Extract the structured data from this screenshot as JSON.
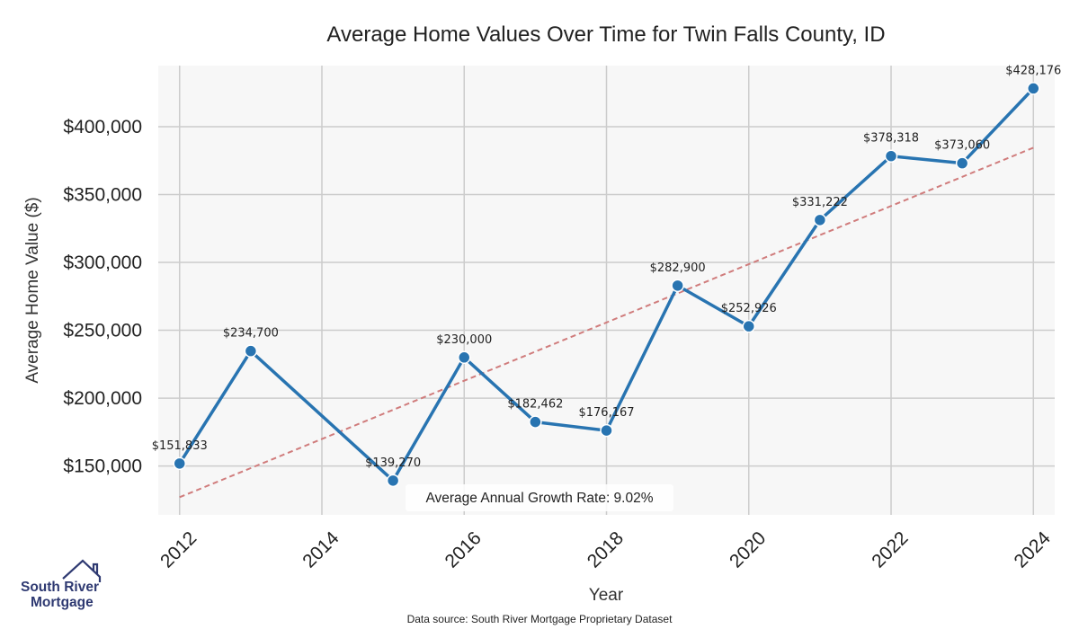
{
  "chart_data": {
    "type": "line",
    "title": "Average Home Values Over Time for Twin Falls County, ID",
    "xlabel": "Year",
    "ylabel": "Average Home Value ($)",
    "xlim": [
      2011.7,
      2024.3
    ],
    "ylim": [
      114000,
      445000
    ],
    "x_ticks": [
      2012,
      2014,
      2016,
      2018,
      2020,
      2022,
      2024
    ],
    "y_ticks": [
      150000,
      200000,
      250000,
      300000,
      350000,
      400000
    ],
    "y_tick_labels": [
      "$150,000",
      "$200,000",
      "$250,000",
      "$300,000",
      "$350,000",
      "$400,000"
    ],
    "grid": true,
    "series": [
      {
        "color": "#2874b1",
        "x": [
          2012,
          2013,
          2015,
          2016,
          2017,
          2018,
          2019,
          2020,
          2021,
          2022,
          2023,
          2024
        ],
        "values": [
          151833,
          234700,
          139270,
          230000,
          182462,
          176167,
          282900,
          252926,
          331222,
          378318,
          373060,
          428176
        ],
        "labels": [
          "$151,833",
          "$234,700",
          "$139,270",
          "$230,000",
          "$182,462",
          "$176,167",
          "$282,900",
          "$252,926",
          "$331,222",
          "$378,318",
          "$373,060",
          "$428,176"
        ]
      }
    ],
    "trend_line": {
      "style": "dashed",
      "color": "#d07c7c",
      "x": [
        2012,
        2024
      ],
      "y": [
        127000,
        384500
      ]
    },
    "annotation": "Average Annual Growth Rate: 9.02%"
  },
  "footer": {
    "source": "Data source: South River Mortgage Proprietary Dataset"
  },
  "logo": {
    "line1": "South River",
    "line2": "Mortgage",
    "color": "#2f3a72"
  }
}
